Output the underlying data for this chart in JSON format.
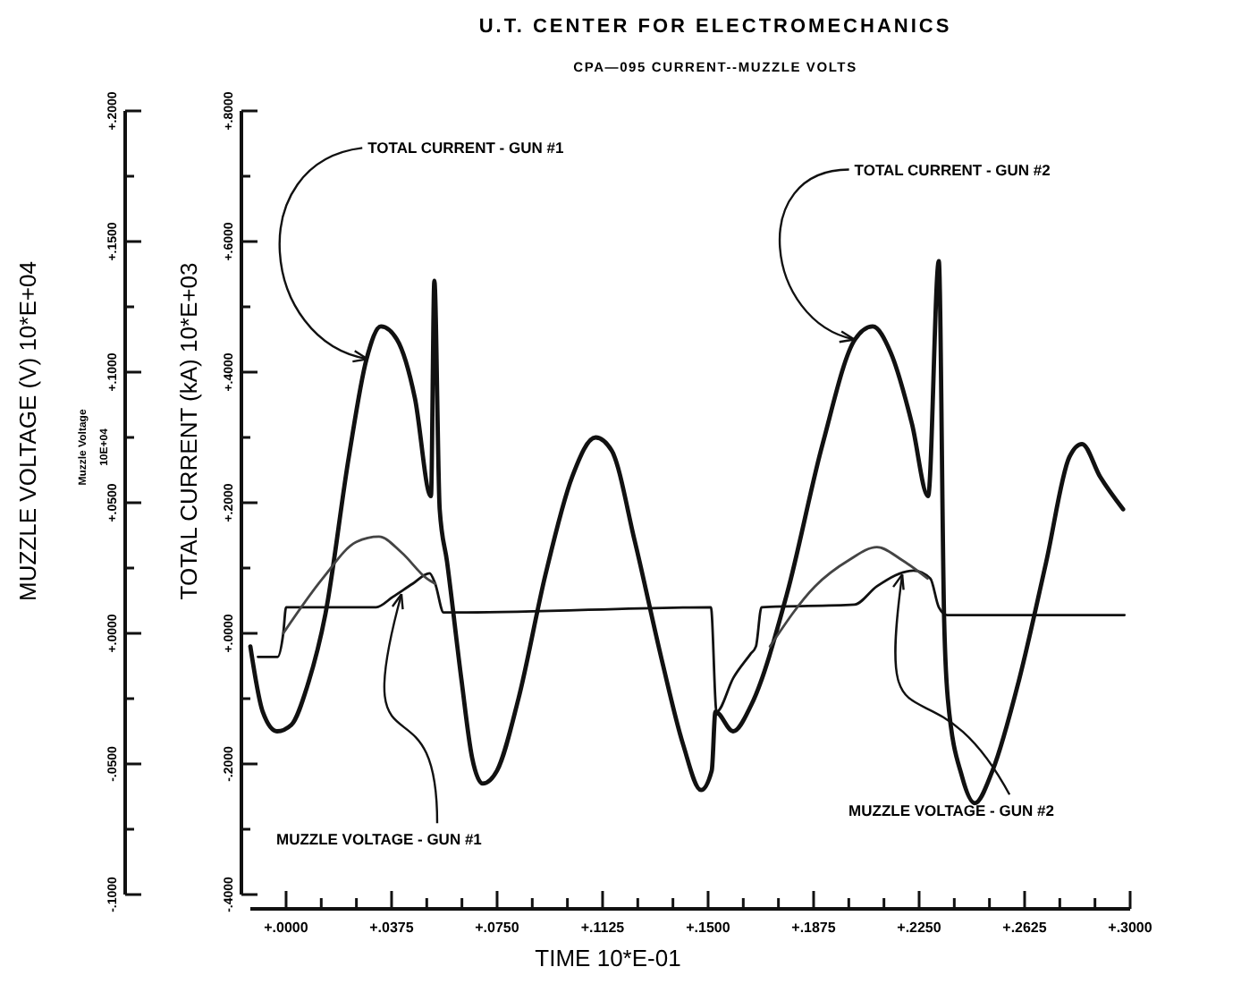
{
  "chart_data": {
    "type": "line",
    "title": "U.T. CENTER FOR ELECTROMECHANICS",
    "subtitle": "CPA—095 CURRENT--MUZZLE VOLTS",
    "xlabel": "TIME   10*E-01",
    "ylabel": "TOTAL CURRENT (kA)   10*E+03",
    "y2label": "MUZZLE VOLTAGE (V)   10*E+04",
    "xlim": [
      -0.0127,
      0.3
    ],
    "xticks": [
      {
        "value": 0,
        "label": "+.0000"
      },
      {
        "value": 0.0125,
        "label": null
      },
      {
        "value": 0.025,
        "label": null
      },
      {
        "value": 0.0375,
        "label": "+.0375"
      },
      {
        "value": 0.05,
        "label": null
      },
      {
        "value": 0.0625,
        "label": null
      },
      {
        "value": 0.075,
        "label": "+.0750"
      },
      {
        "value": 0.0875,
        "label": null
      },
      {
        "value": 0.1,
        "label": null
      },
      {
        "value": 0.1125,
        "label": "+.1125"
      },
      {
        "value": 0.125,
        "label": null
      },
      {
        "value": 0.1375,
        "label": null
      },
      {
        "value": 0.15,
        "label": "+.1500"
      },
      {
        "value": 0.1625,
        "label": null
      },
      {
        "value": 0.175,
        "label": null
      },
      {
        "value": 0.1875,
        "label": "+.1875"
      },
      {
        "value": 0.2,
        "label": null
      },
      {
        "value": 0.2125,
        "label": null
      },
      {
        "value": 0.225,
        "label": "+.2250"
      },
      {
        "value": 0.2375,
        "label": null
      },
      {
        "value": 0.25,
        "label": null
      },
      {
        "value": 0.2625,
        "label": "+.2625"
      },
      {
        "value": 0.275,
        "label": null
      },
      {
        "value": 0.2875,
        "label": null
      },
      {
        "value": 0.3,
        "label": "+.3000"
      }
    ],
    "ylim": [
      -0.4,
      0.8
    ],
    "yticks": [
      {
        "value": -0.4,
        "label": "-.4000"
      },
      {
        "value": -0.3,
        "label": null
      },
      {
        "value": -0.2,
        "label": "-.2000"
      },
      {
        "value": -0.1,
        "label": null
      },
      {
        "value": 0,
        "label": "+.0000"
      },
      {
        "value": 0.1,
        "label": null
      },
      {
        "value": 0.2,
        "label": "+.2000"
      },
      {
        "value": 0.3,
        "label": null
      },
      {
        "value": 0.4,
        "label": "+.4000"
      },
      {
        "value": 0.5,
        "label": null
      },
      {
        "value": 0.6,
        "label": "+.6000"
      },
      {
        "value": 0.7,
        "label": null
      },
      {
        "value": 0.8,
        "label": "+.8000"
      }
    ],
    "y2lim": [
      -0.1,
      0.2
    ],
    "y2ticks": [
      {
        "value": -0.1,
        "label": "-.1000"
      },
      {
        "value": -0.075,
        "label": null
      },
      {
        "value": -0.05,
        "label": "-.0500"
      },
      {
        "value": -0.025,
        "label": null
      },
      {
        "value": 0,
        "label": "+.0000"
      },
      {
        "value": 0.025,
        "label": null
      },
      {
        "value": 0.05,
        "label": "+.0500"
      },
      {
        "value": 0.075,
        "label": null
      },
      {
        "value": 0.1,
        "label": "+.1000"
      },
      {
        "value": 0.125,
        "label": null
      },
      {
        "value": 0.15,
        "label": "+.1500"
      },
      {
        "value": 0.175,
        "label": null
      },
      {
        "value": 0.2,
        "label": "+.2000"
      }
    ],
    "series": [
      {
        "color": "#111111",
        "x": [
          -0.0127,
          -0.0083,
          -0.0032,
          0.0019,
          0.0076,
          0.014,
          0.0223,
          0.0286,
          0.0337,
          0.0394,
          0.0458,
          0.0515,
          0.0527,
          0.0546,
          0.0572,
          0.0623,
          0.0661,
          0.0699,
          0.075,
          0.0826,
          0.0922,
          0.1017,
          0.11,
          0.1157,
          0.124,
          0.1335,
          0.1411,
          0.1475,
          0.1513,
          0.1526,
          0.1589,
          0.1653,
          0.178,
          0.1907,
          0.2022,
          0.2085,
          0.2149,
          0.2225,
          0.2282,
          0.232,
          0.2339,
          0.2352,
          0.2403,
          0.2448,
          0.2511,
          0.2606,
          0.2702,
          0.2784,
          0.2829,
          0.2893,
          0.2975
        ],
        "values": [
          -0.02,
          -0.12,
          -0.15,
          -0.14,
          -0.08,
          0.03,
          0.27,
          0.42,
          0.47,
          0.45,
          0.36,
          0.21,
          0.54,
          0.19,
          0.11,
          -0.07,
          -0.19,
          -0.23,
          -0.21,
          -0.1,
          0.09,
          0.24,
          0.3,
          0.28,
          0.14,
          -0.04,
          -0.17,
          -0.24,
          -0.21,
          -0.12,
          -0.15,
          -0.11,
          0.06,
          0.29,
          0.45,
          0.47,
          0.43,
          0.32,
          0.21,
          0.57,
          0.02,
          -0.1,
          -0.22,
          -0.26,
          -0.21,
          -0.07,
          0.11,
          0.27,
          0.29,
          0.24,
          0.19
        ]
      },
      {
        "color": "#111111",
        "axis": "y2",
        "x": [
          -0.01,
          -0.003,
          -0.001,
          0,
          0.032,
          0.038,
          0.045,
          0.051,
          0.053,
          0.056,
          0.064,
          0.151,
          0.153,
          0.159,
          0.165,
          0.167,
          0.169,
          0.202,
          0.21,
          0.223,
          0.229,
          0.232,
          0.235,
          0.298
        ],
        "values": [
          -0.009,
          -0.009,
          0,
          0.01,
          0.01,
          0.014,
          0.019,
          0.023,
          0.019,
          0.008,
          0.008,
          0.01,
          -0.03,
          -0.017,
          -0.008,
          -0.005,
          0.01,
          0.011,
          0.018,
          0.024,
          0.021,
          0.01,
          0.007,
          0.007
        ]
      },
      {
        "color": "#444444",
        "axis": "y2",
        "x": [
          -0.001,
          0.013,
          0.025,
          0.033,
          0.041,
          0.05,
          0.053,
          0.1,
          0.172,
          0.188,
          0.2,
          0.21,
          0.219,
          0.228
        ],
        "values": [
          0,
          0.021,
          0.035,
          0.037,
          0.031,
          0.021,
          0.019,
          null,
          -0.005,
          0.018,
          0.028,
          0.033,
          0.028,
          0.021
        ]
      }
    ],
    "annotations": [
      {
        "text": "TOTAL CURRENT - GUN #1",
        "x": 0.029,
        "y": 0.42
      },
      {
        "text": "TOTAL CURRENT - GUN #2",
        "x": 0.202,
        "y": 0.45
      },
      {
        "text": "MUZZLE VOLTAGE - GUN #1",
        "x": 0.041,
        "y": 0.06
      },
      {
        "text": "MUZZLE VOLTAGE - GUN #2",
        "x": 0.219,
        "y": 0.09
      },
      "Muzzle Voltage",
      "10E+04"
    ],
    "grid": false,
    "marker": "none",
    "line_style": "solid"
  }
}
